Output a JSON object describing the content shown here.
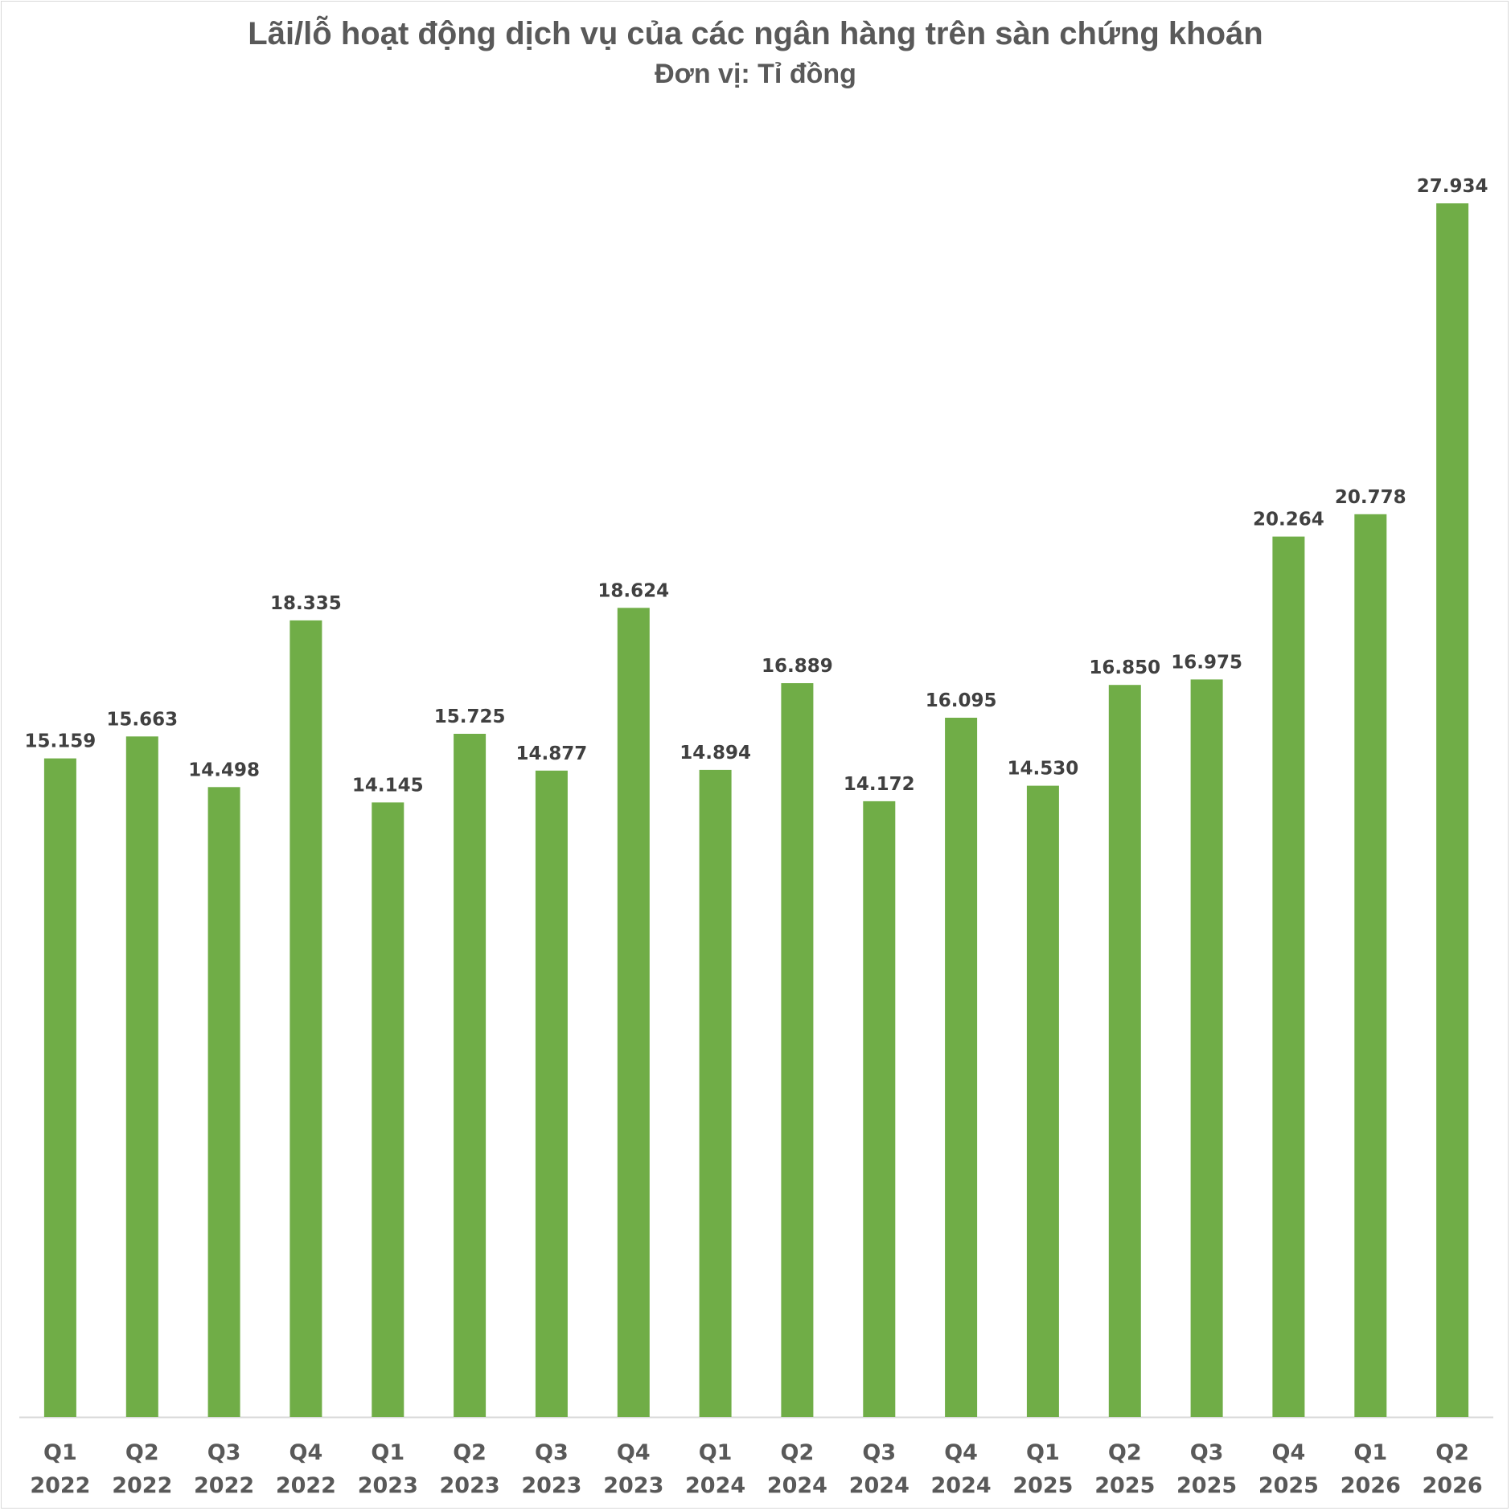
{
  "chart_data": {
    "type": "bar",
    "title": "Lãi/lỗ hoạt động dịch vụ của các ngân hàng trên sàn chứng khoán",
    "subtitle": "Đơn vị: Tỉ đồng",
    "xlabel": "",
    "ylabel": "",
    "ylim": [
      0,
      27934
    ],
    "grid": false,
    "legend": "none",
    "bar_color": "#70AD47",
    "categories": [
      {
        "quarter": "Q1",
        "year": "2022"
      },
      {
        "quarter": "Q2",
        "year": "2022"
      },
      {
        "quarter": "Q3",
        "year": "2022"
      },
      {
        "quarter": "Q4",
        "year": "2022"
      },
      {
        "quarter": "Q1",
        "year": "2023"
      },
      {
        "quarter": "Q2",
        "year": "2023"
      },
      {
        "quarter": "Q3",
        "year": "2023"
      },
      {
        "quarter": "Q4",
        "year": "2023"
      },
      {
        "quarter": "Q1",
        "year": "2024"
      },
      {
        "quarter": "Q2",
        "year": "2024"
      },
      {
        "quarter": "Q3",
        "year": "2024"
      },
      {
        "quarter": "Q4",
        "year": "2024"
      },
      {
        "quarter": "Q1",
        "year": "2025"
      },
      {
        "quarter": "Q2",
        "year": "2025"
      },
      {
        "quarter": "Q3",
        "year": "2025"
      },
      {
        "quarter": "Q4",
        "year": "2025"
      },
      {
        "quarter": "Q1",
        "year": "2026"
      },
      {
        "quarter": "Q2",
        "year": "2026"
      }
    ],
    "values": [
      15159,
      15663,
      14498,
      18335,
      14145,
      15725,
      14877,
      18624,
      14894,
      16889,
      14172,
      16095,
      14530,
      16850,
      16975,
      20264,
      20778,
      27934
    ],
    "value_labels": [
      "15.159",
      "15.663",
      "14.498",
      "18.335",
      "14.145",
      "15.725",
      "14.877",
      "18.624",
      "14.894",
      "16.889",
      "14.172",
      "16.095",
      "14.530",
      "16.850",
      "16.975",
      "20.264",
      "20.778",
      "27.934"
    ]
  }
}
